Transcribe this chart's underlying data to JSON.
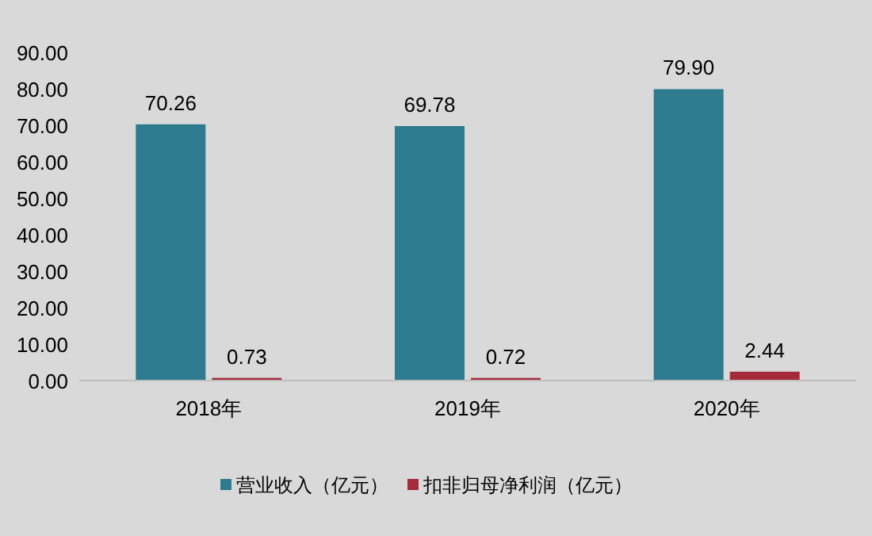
{
  "chart_data": {
    "type": "bar",
    "categories": [
      "2018年",
      "2019年",
      "2020年"
    ],
    "series": [
      {
        "name": "营业收入（亿元）",
        "color": "#2e7a8e",
        "values": [
          70.26,
          69.78,
          79.9
        ]
      },
      {
        "name": "扣非归母净利润（亿元）",
        "color": "#a52a3a",
        "values": [
          0.73,
          0.72,
          2.44
        ]
      }
    ],
    "value_labels": [
      [
        "70.26",
        "69.78",
        "79.90"
      ],
      [
        "0.73",
        "0.72",
        "2.44"
      ]
    ],
    "ylim": [
      0,
      90
    ],
    "yticks": [
      {
        "value": 0,
        "label": "0.00"
      },
      {
        "value": 10,
        "label": "10.00"
      },
      {
        "value": 20,
        "label": "20.00"
      },
      {
        "value": 30,
        "label": "30.00"
      },
      {
        "value": 40,
        "label": "40.00"
      },
      {
        "value": 50,
        "label": "50.00"
      },
      {
        "value": 60,
        "label": "60.00"
      },
      {
        "value": 70,
        "label": "70.00"
      },
      {
        "value": 80,
        "label": "80.00"
      },
      {
        "value": 90,
        "label": "90.00"
      }
    ],
    "grid": false,
    "legend": "bottom"
  }
}
